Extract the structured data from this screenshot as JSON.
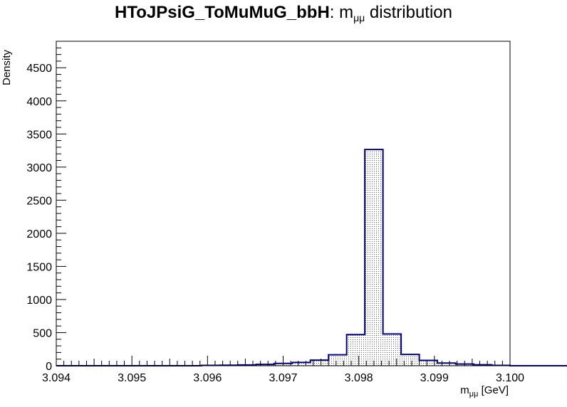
{
  "title": {
    "bold": "HToJPsiG_ToMuMuG_bbH",
    "suffix_pre": ": m",
    "sub": "μμ",
    "suffix_post": " distribution"
  },
  "chart_data": {
    "type": "bar",
    "histogram": true,
    "title": "HToJPsiG_ToMuMuG_bbH: mμμ distribution",
    "xlabel_main": "m",
    "xlabel_sub": "μμ",
    "xlabel_unit": " [GeV]",
    "ylabel": "Density",
    "xlim": [
      3.094,
      3.1
    ],
    "ylim": [
      0,
      4900
    ],
    "x_ticks": [
      "3.094",
      "3.095",
      "3.096",
      "3.097",
      "3.098",
      "3.099",
      "3.100"
    ],
    "y_ticks": [
      "0",
      "500",
      "1000",
      "1500",
      "2000",
      "2500",
      "3000",
      "3500",
      "4000",
      "4500"
    ],
    "bin_width": 0.00024,
    "bin_edges_start": 3.094,
    "values": [
      0,
      0,
      0,
      0,
      0,
      0,
      0,
      0,
      5,
      8,
      12,
      20,
      35,
      50,
      85,
      165,
      470,
      3265,
      480,
      170,
      80,
      40,
      25,
      15,
      5,
      0,
      0,
      0,
      0,
      0,
      0,
      0,
      0,
      0,
      0
    ],
    "line_color": "#000080",
    "fill_pattern": "dotted-gray",
    "grid": false
  }
}
